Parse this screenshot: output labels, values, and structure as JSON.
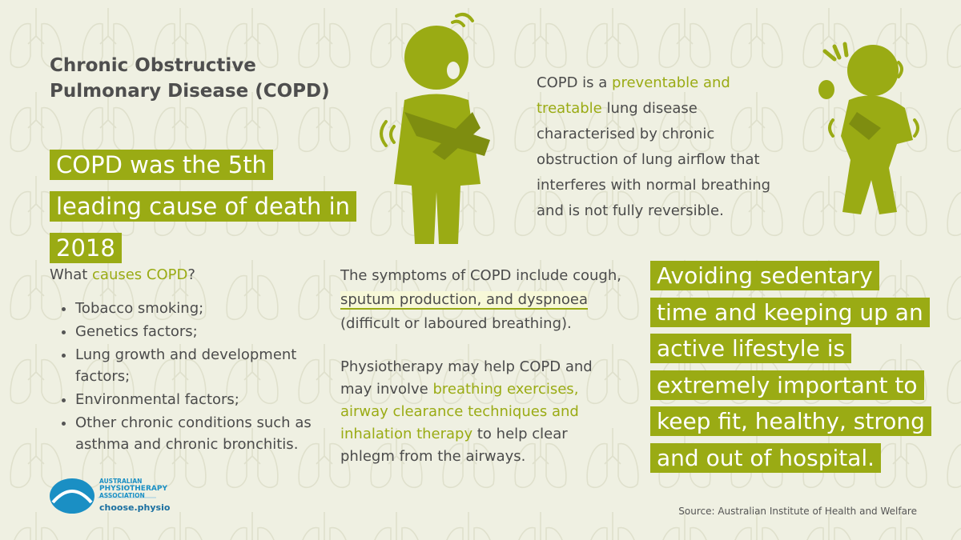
{
  "header": {
    "title": "Chronic Obstructive Pulmonary Disease (COPD)"
  },
  "highlight": "COPD was the 5th leading cause of death in 2018",
  "definition": {
    "parts": [
      "COPD is a ",
      "preventable and treatable",
      " lung disease characterised by chronic obstruction of lung airflow that interferes with normal breathing and is not fully reversible."
    ]
  },
  "causes": {
    "heading": [
      "What ",
      "causes COPD",
      "?"
    ],
    "items": [
      "Tobacco smoking;",
      "Genetics factors;",
      "Lung growth and development factors;",
      "Environmental factors;",
      "Other chronic conditions such as asthma and chronic bronchitis."
    ]
  },
  "symptoms": {
    "parts": [
      "The symptoms of COPD include cough, ",
      "sputum production, and dyspnoea",
      " (difficult or laboured breathing)."
    ]
  },
  "physiotherapy": {
    "parts": [
      "Physiotherapy may help COPD and may involve ",
      "breathing exercises, airway clearance techniques and inhalation therapy",
      " to help clear phlegm from the airways."
    ]
  },
  "callout": "Avoiding sedentary time and keeping up an active lifestyle is extremely important to keep fit, healthy, strong and out of hospital.",
  "logo": {
    "lines": [
      "AUSTRALIAN",
      "PHYSIOTHERAPY",
      "ASSOCIATION"
    ],
    "url": "choose.physio"
  },
  "source": "Source: Australian Institute of Health and Welfare"
}
